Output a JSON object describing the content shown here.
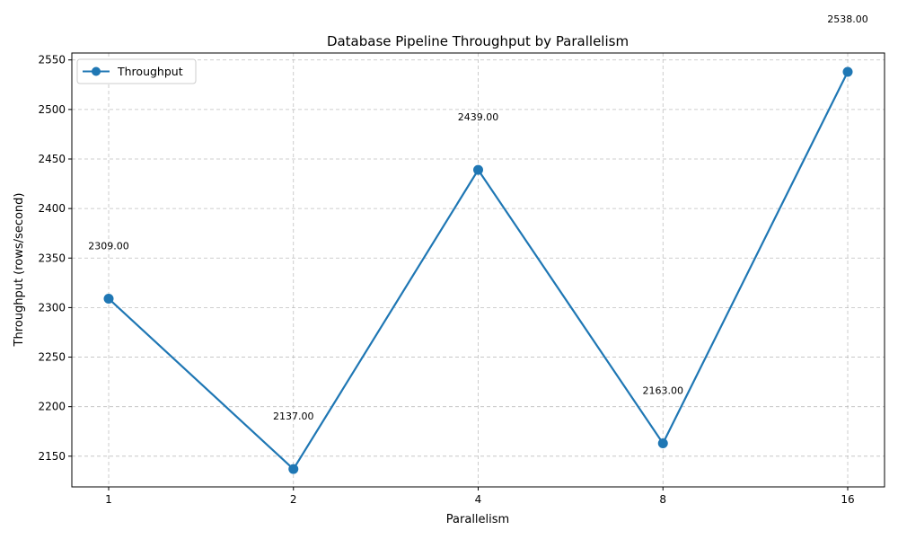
{
  "chart_data": {
    "type": "line",
    "title": "Database Pipeline Throughput by Parallelism",
    "xlabel": "Parallelism",
    "ylabel": "Throughput (rows/second)",
    "categories": [
      "1",
      "2",
      "4",
      "8",
      "16"
    ],
    "series": [
      {
        "name": "Throughput",
        "values": [
          2309,
          2137,
          2439,
          2163,
          2538
        ],
        "data_labels": [
          "2309.00",
          "2137.00",
          "2439.00",
          "2163.00",
          "2538.00"
        ],
        "color": "#1f77b4",
        "marker": "circle"
      }
    ],
    "ylim": [
      2119,
      2557
    ],
    "yticks": [
      2150,
      2200,
      2250,
      2300,
      2350,
      2400,
      2450,
      2500,
      2550
    ],
    "grid": true,
    "legend": "upper-left"
  }
}
